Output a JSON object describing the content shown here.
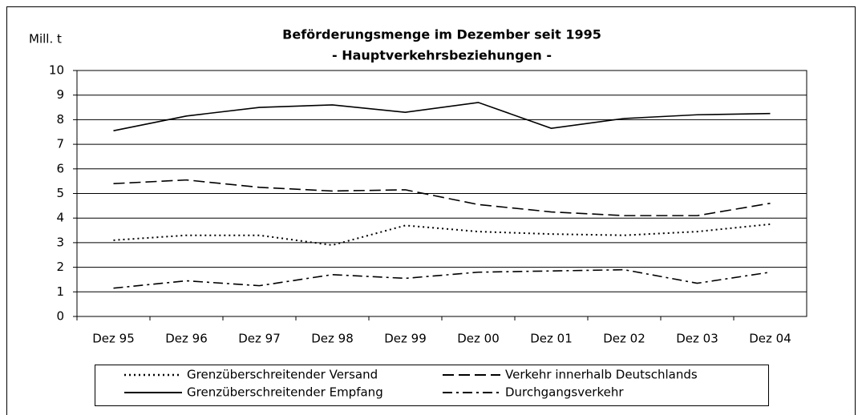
{
  "chart_data": {
    "type": "line",
    "title": "Beförderungsmenge im Dezember  seit 1995",
    "subtitle": "- Hauptverkehrsbeziehungen -",
    "y_label": "Mill. t",
    "categories": [
      "Dez 95",
      "Dez 96",
      "Dez 97",
      "Dez 98",
      "Dez 99",
      "Dez 00",
      "Dez 01",
      "Dez 02",
      "Dez 03",
      "Dez 04"
    ],
    "series": [
      {
        "name": "Grenzüberschreitender Versand",
        "color": "#000000",
        "dash": "dotted",
        "values": [
          3.1,
          3.3,
          3.3,
          2.9,
          3.7,
          3.45,
          3.35,
          3.3,
          3.45,
          3.75
        ]
      },
      {
        "name": "Verkehr innerhalb Deutschlands",
        "color": "#000000",
        "dash": "dashed",
        "values": [
          5.4,
          5.55,
          5.25,
          5.1,
          5.15,
          4.55,
          4.25,
          4.1,
          4.1,
          4.6
        ]
      },
      {
        "name": "Grenzüberschreitender Empfang",
        "color": "#000000",
        "dash": "solid",
        "values": [
          7.55,
          8.15,
          8.5,
          8.6,
          8.3,
          8.7,
          7.65,
          8.05,
          8.2,
          8.25
        ]
      },
      {
        "name": "Durchgangsverkehr",
        "color": "#000000",
        "dash": "dashdot",
        "values": [
          1.15,
          1.45,
          1.25,
          1.7,
          1.55,
          1.8,
          1.85,
          1.9,
          1.35,
          1.8
        ]
      }
    ],
    "ylim": [
      0,
      10
    ],
    "yticks": [
      0,
      1,
      2,
      3,
      4,
      5,
      6,
      7,
      8,
      9,
      10
    ],
    "grid": true
  }
}
